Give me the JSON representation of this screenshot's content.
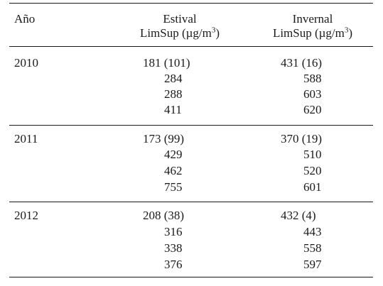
{
  "header": {
    "year_label": "Año",
    "estival_line1": "Estival",
    "estival_line2": "LimSup (µg/m",
    "invernal_line1": "Invernal",
    "invernal_line2": "LimSup (µg/m",
    "unit_sup": "3",
    "unit_close": ")"
  },
  "rows": [
    {
      "year": "2010",
      "estival": [
        "181 (101)",
        "284",
        "288",
        "411"
      ],
      "invernal": [
        "431 (16)",
        "588",
        "603",
        "620"
      ]
    },
    {
      "year": "2011",
      "estival": [
        "173 (99)",
        "429",
        "462",
        "755"
      ],
      "invernal": [
        "370 (19)",
        "510",
        "520",
        "601"
      ]
    },
    {
      "year": "2012",
      "estival": [
        "208 (38)",
        "316",
        "338",
        "376"
      ],
      "invernal": [
        "432 (4)",
        "443",
        "558",
        "597"
      ]
    }
  ]
}
